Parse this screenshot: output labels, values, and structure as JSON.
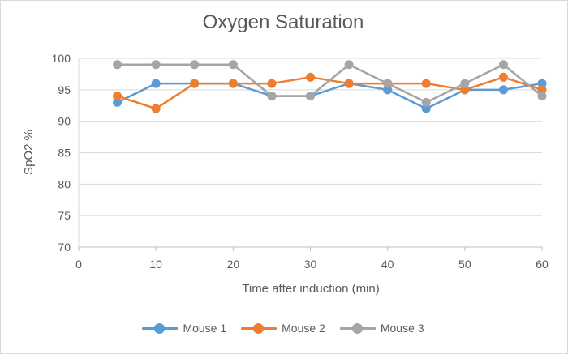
{
  "chart_data": {
    "type": "line",
    "title": "Oxygen Saturation",
    "xlabel": "Time after induction (min)",
    "ylabel": "SpO2 %",
    "xlim": [
      0,
      60
    ],
    "ylim": [
      70,
      100
    ],
    "xticks": [
      0,
      10,
      20,
      30,
      40,
      50,
      60
    ],
    "yticks": [
      70,
      75,
      80,
      85,
      90,
      95,
      100
    ],
    "grid": "horizontal",
    "legend_position": "bottom",
    "x": [
      5,
      10,
      15,
      20,
      25,
      30,
      35,
      40,
      45,
      50,
      55,
      60
    ],
    "series": [
      {
        "name": "Mouse 1",
        "color": "#5b9bd5",
        "values": [
          93,
          96,
          96,
          96,
          94,
          94,
          96,
          95,
          92,
          95,
          95,
          96
        ]
      },
      {
        "name": "Mouse 2",
        "color": "#ed7d31",
        "values": [
          94,
          92,
          96,
          96,
          96,
          97,
          96,
          96,
          96,
          95,
          97,
          95
        ]
      },
      {
        "name": "Mouse 3",
        "color": "#a5a5a5",
        "values": [
          99,
          99,
          99,
          99,
          94,
          94,
          99,
          96,
          93,
          96,
          99,
          94
        ]
      }
    ]
  }
}
